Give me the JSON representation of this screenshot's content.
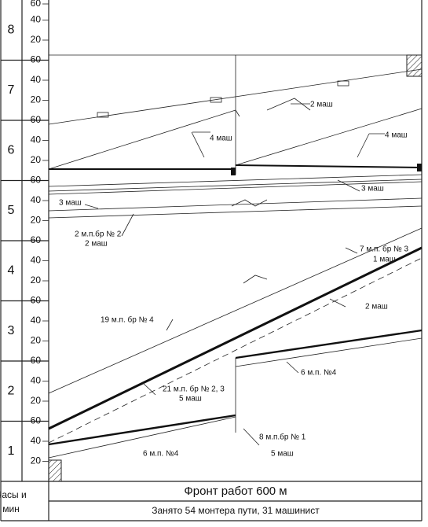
{
  "hours": [
    {
      "label": "8",
      "minutes": [
        "60",
        "40",
        "20"
      ]
    },
    {
      "label": "7",
      "minutes": [
        "60",
        "40",
        "20"
      ]
    },
    {
      "label": "6",
      "minutes": [
        "60",
        "40",
        "20"
      ]
    },
    {
      "label": "5",
      "minutes": [
        "60",
        "40",
        "20"
      ]
    },
    {
      "label": "4",
      "minutes": [
        "60",
        "40",
        "20"
      ]
    },
    {
      "label": "3",
      "minutes": [
        "60",
        "40",
        "20"
      ]
    },
    {
      "label": "2",
      "minutes": [
        "60",
        "40",
        "20"
      ]
    },
    {
      "label": "1",
      "minutes": [
        "60",
        "40",
        "20"
      ]
    }
  ],
  "annotations": [
    "2 маш",
    "4 маш",
    "4 маш",
    "3 маш",
    "3 маш",
    "2 м.п.бр № 2",
    "2 маш",
    "7 м.п. бр № 3",
    "1 маш",
    "2 маш",
    "19 м.п. бр № 4",
    "6 м.п. №4",
    "21 м.п. бр № 2, 3",
    "5 маш",
    "8 м.п.бр № 1",
    "5 маш",
    "6 м.п. №4"
  ],
  "footer": {
    "hours_label_1": "Часы и",
    "hours_label_2": "мин",
    "front": "Фронт работ 600 м",
    "staff": "Занято 54 монтера пути, 31 машинист"
  }
}
